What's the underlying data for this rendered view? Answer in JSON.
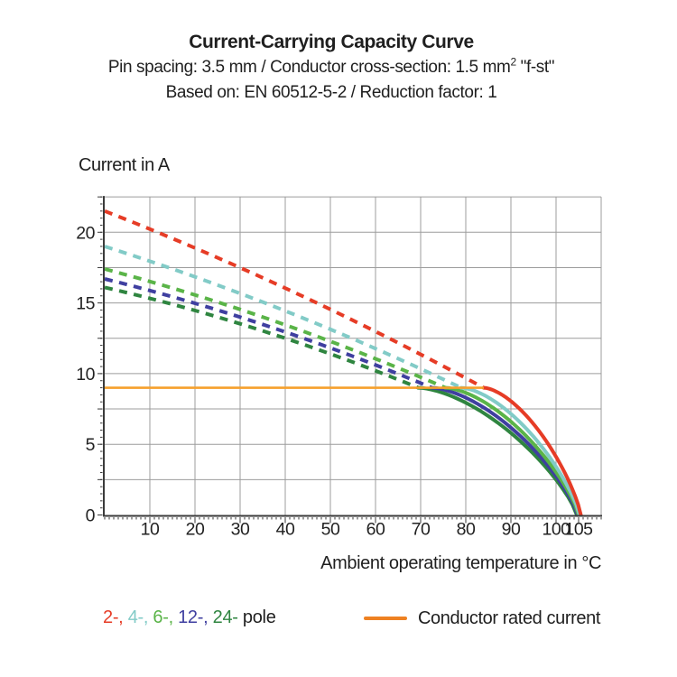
{
  "header": {
    "title": "Current-Carrying Capacity Curve",
    "subtitle1_prefix": "Pin spacing: 3.5 mm / Conductor cross-section: 1.5 mm",
    "subtitle1_sup": "2",
    "subtitle1_suffix": " \"f-st\"",
    "subtitle2": "Based on: EN 60512-5-2 / Reduction factor: 1"
  },
  "chart_data": {
    "type": "line",
    "title": "Current-Carrying Capacity Curve",
    "ylabel": "Current in A",
    "xlabel": "Ambient operating temperature in °C",
    "xlim": [
      0,
      110
    ],
    "ylim": [
      0,
      22.5
    ],
    "x_major_ticks": [
      10,
      20,
      30,
      40,
      50,
      60,
      70,
      80,
      90,
      100,
      105
    ],
    "x_minor_step": 1,
    "y_labeled_ticks": [
      0,
      5,
      10,
      15,
      20
    ],
    "y_major_step": 2.5,
    "y_minor_step": 0.5,
    "grid_x_step": 10,
    "grid_y_step": 2.5,
    "grid_on": true,
    "grid_color": "#9c9c9c",
    "axis_color": "#3a3a3a",
    "rated_current_a": 9,
    "rated_line_color": "#f6a02c",
    "rated_line_end_temp": 84,
    "series": [
      {
        "name": "2-pole",
        "poles": 2,
        "color": "#e63c26",
        "current_at_0c": 21.5,
        "temp_at_rated": 84,
        "temp_at_zero": 105.5,
        "style": "dashed-then-solid"
      },
      {
        "name": "4-pole",
        "poles": 4,
        "color": "#82cbc7",
        "current_at_0c": 19.0,
        "temp_at_rated": 79,
        "temp_at_zero": 105.2,
        "style": "dashed-then-solid"
      },
      {
        "name": "6-pole",
        "poles": 6,
        "color": "#5ab448",
        "current_at_0c": 17.4,
        "temp_at_rated": 75.5,
        "temp_at_zero": 105.0,
        "style": "dashed-then-solid"
      },
      {
        "name": "12-pole",
        "poles": 12,
        "color": "#3f3fa0",
        "current_at_0c": 16.7,
        "temp_at_rated": 72.5,
        "temp_at_zero": 104.8,
        "style": "dashed-then-solid"
      },
      {
        "name": "24-pole",
        "poles": 24,
        "color": "#2f8540",
        "current_at_0c": 16.1,
        "temp_at_rated": 69.5,
        "temp_at_zero": 104.6,
        "style": "dashed-then-solid"
      }
    ],
    "legend_position": "bottom"
  },
  "legend": {
    "poles": [
      {
        "label": "2-",
        "color": "#e63c26"
      },
      {
        "label": "4-",
        "color": "#82cbc7"
      },
      {
        "label": "6-",
        "color": "#5ab448"
      },
      {
        "label": "12-",
        "color": "#3f3fa0"
      },
      {
        "label": "24-",
        "color": "#2f8540"
      }
    ],
    "separator": ", ",
    "pole_suffix": " pole",
    "rated_label": "Conductor rated current",
    "rated_color": "#ee8122"
  }
}
